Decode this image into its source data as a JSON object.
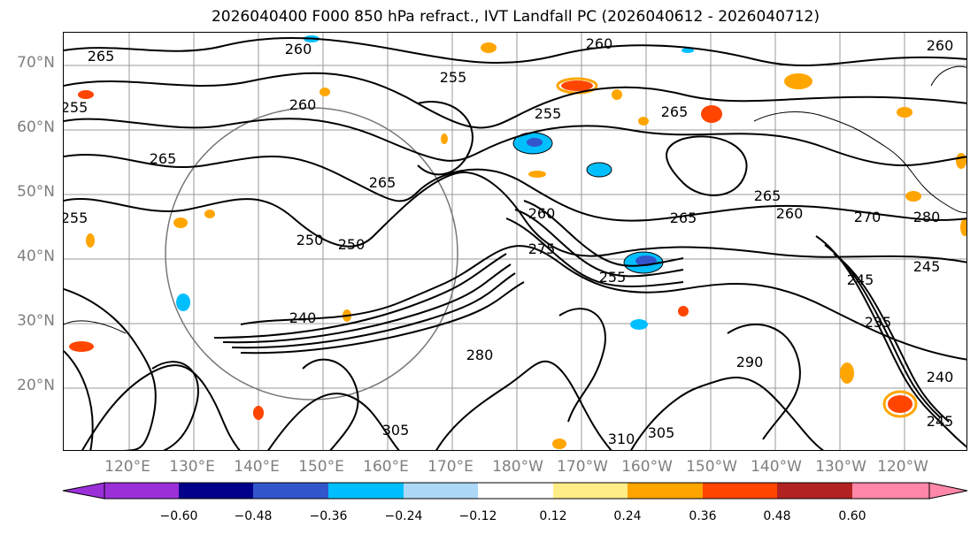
{
  "title": "2026040400 F000 850 hPa refract., IVT Landfall PC (2026040612 - 2026040712)",
  "lat_labels": [
    "70°N",
    "60°N",
    "50°N",
    "40°N",
    "30°N",
    "20°N"
  ],
  "lon_labels": [
    "120°E",
    "130°E",
    "140°E",
    "150°E",
    "160°E",
    "170°E",
    "180°W",
    "170°W",
    "160°W",
    "150°W",
    "140°W",
    "130°W",
    "120°W"
  ],
  "contour_labels": [
    "265",
    "260",
    "260",
    "255",
    "255",
    "250",
    "250",
    "240",
    "245",
    "235",
    "265",
    "260",
    "265",
    "270",
    "280",
    "260",
    "265",
    "265",
    "260",
    "275",
    "255",
    "280",
    "290",
    "305",
    "310",
    "305",
    "245",
    "240",
    "245",
    "265",
    "255",
    "255",
    "260"
  ],
  "colorbar": {
    "ticks": [
      "−0.60",
      "−0.48",
      "−0.36",
      "−0.24",
      "−0.12",
      "0.12",
      "0.24",
      "0.36",
      "0.48",
      "0.60"
    ],
    "colors": [
      "#9b30d9",
      "#00008b",
      "#3355cc",
      "#00bfff",
      "#add8f7",
      "#ffffff",
      "#ffee88",
      "#ffa500",
      "#ff4500",
      "#b22222",
      "#ff88aa",
      "#ff88aa"
    ],
    "extend_low": "#9b30d9",
    "extend_high": "#ff88aa"
  }
}
